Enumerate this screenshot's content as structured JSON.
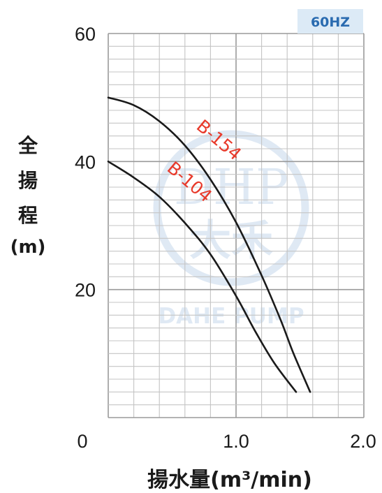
{
  "badge": "60HZ",
  "watermark": {
    "logo_text": "DHP",
    "logo_cjk": "大禾",
    "caption": "DAHE PUMP"
  },
  "chart_data": {
    "type": "line",
    "ylabel_chars": [
      "全",
      "揚",
      "程",
      "(m)"
    ],
    "xlabel": "揚水量(m³/min)",
    "xlim": [
      0,
      2.0
    ],
    "ylim": [
      0,
      60
    ],
    "x_ticks": [
      {
        "value": 0,
        "label": "0"
      },
      {
        "value": 1.0,
        "label": "1.0"
      },
      {
        "value": 2.0,
        "label": "2.0"
      }
    ],
    "y_ticks": [
      {
        "value": 20,
        "label": "20"
      },
      {
        "value": 40,
        "label": "40"
      },
      {
        "value": 60,
        "label": "60"
      }
    ],
    "grid": true,
    "series": [
      {
        "name": "B-154",
        "x": [
          0.0,
          0.2,
          0.4,
          0.6,
          0.8,
          1.0,
          1.2,
          1.35,
          1.45,
          1.58
        ],
        "y": [
          50,
          48.8,
          46.3,
          42.5,
          37.2,
          30.5,
          22.2,
          15.2,
          10.0,
          4.0
        ]
      },
      {
        "name": "B-104",
        "x": [
          0.0,
          0.2,
          0.4,
          0.6,
          0.8,
          1.0,
          1.15,
          1.3,
          1.47
        ],
        "y": [
          40,
          37.5,
          34.5,
          30.4,
          25.5,
          19.0,
          13.5,
          8.5,
          4.0
        ]
      }
    ]
  }
}
